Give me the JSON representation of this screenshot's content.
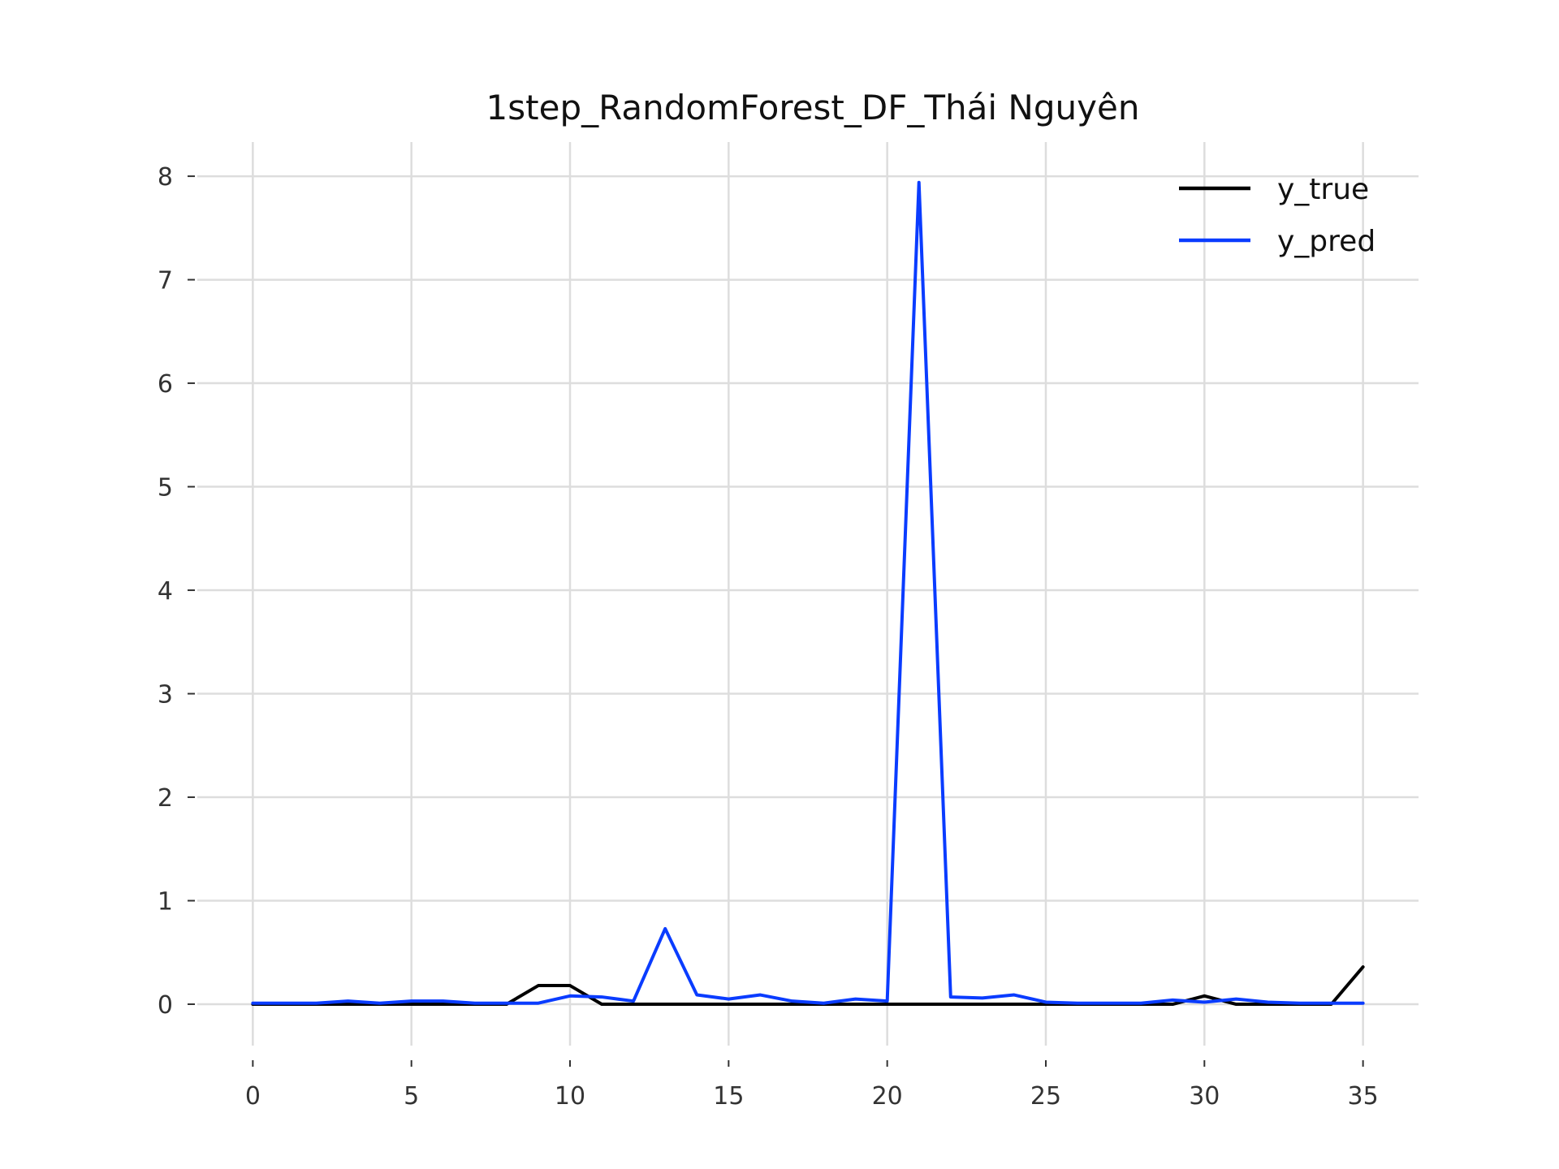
{
  "chart_data": {
    "type": "line",
    "title": "1step_RandomForest_DF_Thái Nguyên",
    "xlabel": "",
    "ylabel": "",
    "xlim": [
      -1.75,
      36.75
    ],
    "ylim": [
      -0.4,
      8.33
    ],
    "xticks": [
      0,
      5,
      10,
      15,
      20,
      25,
      30,
      35
    ],
    "yticks": [
      0,
      1,
      2,
      3,
      4,
      5,
      6,
      7,
      8
    ],
    "grid": true,
    "legend": "top-right",
    "x": [
      0,
      1,
      2,
      3,
      4,
      5,
      6,
      7,
      8,
      9,
      10,
      11,
      12,
      13,
      14,
      15,
      16,
      17,
      18,
      19,
      20,
      21,
      22,
      23,
      24,
      25,
      26,
      27,
      28,
      29,
      30,
      31,
      32,
      33,
      34,
      35
    ],
    "series": [
      {
        "name": "y_true",
        "color": "#000000",
        "values": [
          0,
          0,
          0,
          0,
          0,
          0,
          0,
          0,
          0,
          0.18,
          0.18,
          0,
          0,
          0,
          0,
          0,
          0,
          0,
          0,
          0,
          0,
          0,
          0,
          0,
          0,
          0,
          0,
          0,
          0,
          0,
          0.08,
          0,
          0,
          0,
          0,
          0.36
        ]
      },
      {
        "name": "y_pred",
        "color": "#0a3cff",
        "values": [
          0.01,
          0.01,
          0.01,
          0.03,
          0.01,
          0.03,
          0.03,
          0.01,
          0.01,
          0.01,
          0.08,
          0.07,
          0.03,
          0.73,
          0.09,
          0.05,
          0.09,
          0.03,
          0.01,
          0.05,
          0.03,
          7.94,
          0.07,
          0.06,
          0.09,
          0.02,
          0.01,
          0.01,
          0.01,
          0.04,
          0.02,
          0.05,
          0.02,
          0.01,
          0.01,
          0.01
        ]
      }
    ]
  }
}
